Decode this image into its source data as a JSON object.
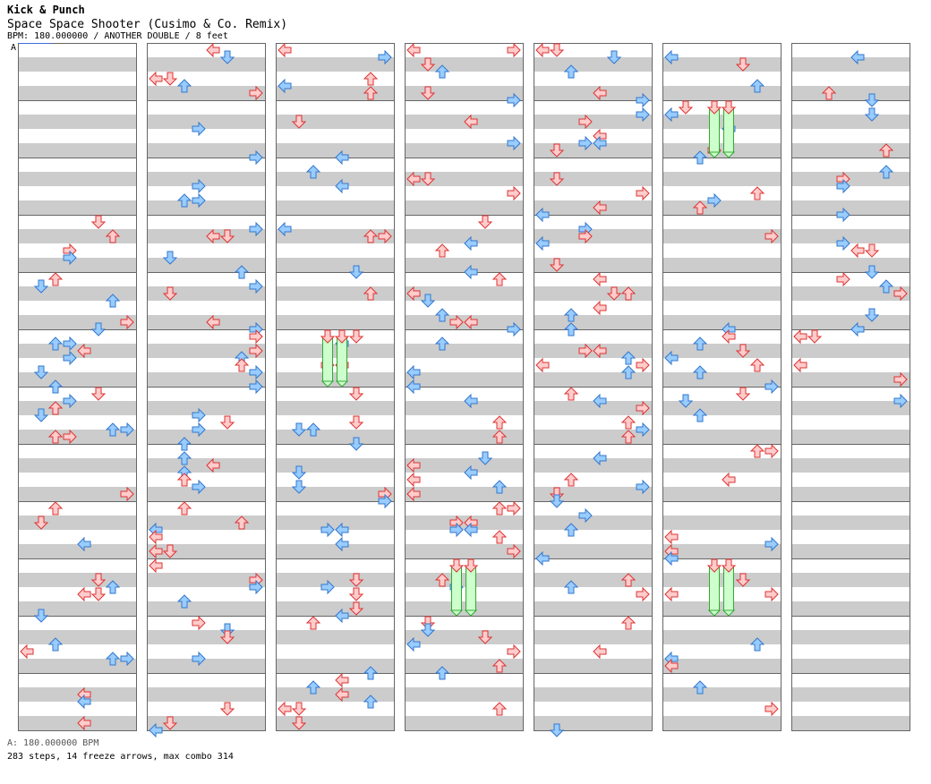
{
  "header": {
    "artist": "Kick & Punch",
    "title": "Space Space Shooter (Cusimo & Co. Remix)",
    "info": "BPM: 180.000000 / ANOTHER DOUBLE / 8 feet"
  },
  "chart": {
    "bpm_marker": "A",
    "columns": 7,
    "measures_per_column": 12,
    "lanes": 8,
    "colors": {
      "stripe": "#cccccc",
      "border": "#666666",
      "arrow_red_fill": "#ffcccc",
      "arrow_red_stroke": "#dd3333",
      "arrow_blue_fill": "#99ccff",
      "arrow_blue_stroke": "#3377cc",
      "freeze_fill": "#ccffcc",
      "freeze_stroke": "#33aa33"
    }
  },
  "footer": {
    "bpm_line": "A: 180.000000 BPM",
    "stats_line": "283 steps, 14 freeze arrows, max combo 314"
  }
}
